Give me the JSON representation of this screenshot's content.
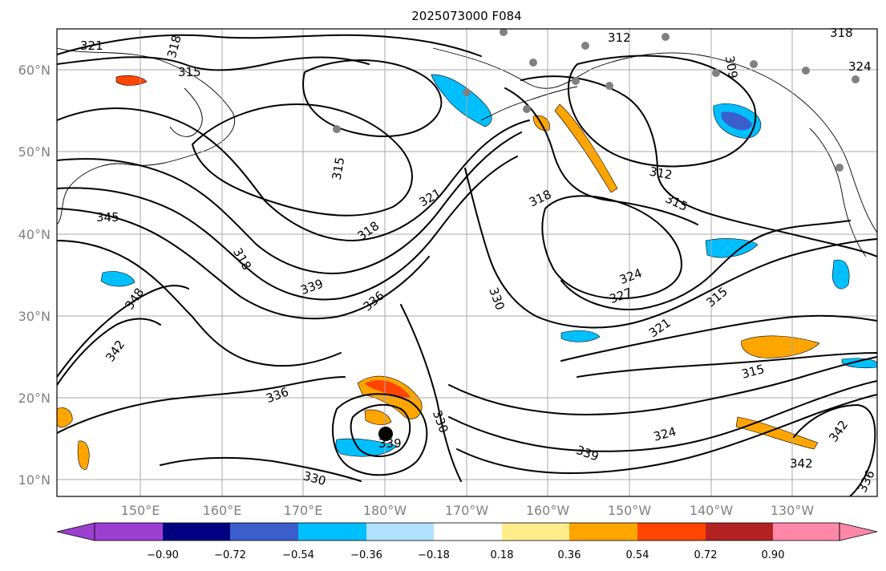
{
  "title": "2025073000 F084",
  "map": {
    "lat_ticks": [
      "60°N",
      "50°N",
      "40°N",
      "30°N",
      "20°N",
      "10°N"
    ],
    "lon_ticks": [
      "150°E",
      "160°E",
      "170°E",
      "180°W",
      "170°W",
      "160°W",
      "150°W",
      "140°W",
      "130°W"
    ],
    "contour_labels": [
      "321",
      "318",
      "315",
      "312",
      "318",
      "324",
      "309",
      "315",
      "345",
      "321",
      "318",
      "315",
      "312",
      "318",
      "315",
      "324",
      "327",
      "318",
      "339",
      "336",
      "330",
      "348",
      "321",
      "342",
      "315",
      "336",
      "324",
      "330",
      "339",
      "342",
      "339",
      "330",
      "342",
      "336"
    ],
    "colors": {
      "grid": "#a8a8a8",
      "contour": "#000000",
      "lat_lon_labels": "#808080"
    }
  },
  "colorbar": {
    "labels": [
      "−0.90",
      "−0.72",
      "−0.54",
      "−0.36",
      "−0.18",
      "0.18",
      "0.36",
      "0.54",
      "0.72",
      "0.90"
    ],
    "colors": [
      "#9b3fd1",
      "#000080",
      "#3a5fcd",
      "#00bfff",
      "#b0e2ff",
      "#ffffff",
      "#ffed8b",
      "#ffa500",
      "#ff4500",
      "#b22222",
      "#ff88aa"
    ]
  }
}
